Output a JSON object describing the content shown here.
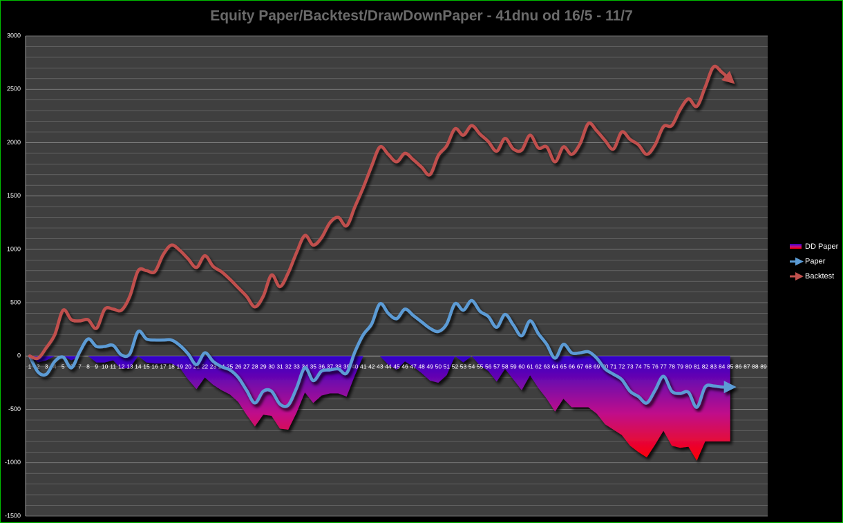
{
  "chart_data": {
    "type": "line",
    "title": "Equity Paper/Backtest/DrawDownPaper - 41dnu od 16/5 - 11/7",
    "categories": [
      1,
      2,
      3,
      4,
      5,
      6,
      7,
      8,
      9,
      10,
      11,
      12,
      13,
      14,
      15,
      16,
      17,
      18,
      19,
      20,
      21,
      22,
      23,
      24,
      25,
      26,
      27,
      28,
      29,
      30,
      31,
      32,
      33,
      34,
      35,
      36,
      37,
      38,
      39,
      40,
      41,
      42,
      43,
      44,
      45,
      46,
      47,
      48,
      49,
      50,
      51,
      52,
      53,
      54,
      55,
      56,
      57,
      58,
      59,
      60,
      61,
      62,
      63,
      64,
      65,
      66,
      67,
      68,
      69,
      70,
      71,
      72,
      73,
      74,
      75,
      76,
      77,
      78,
      79,
      80,
      81,
      82,
      83,
      84,
      85,
      86,
      87,
      88,
      89
    ],
    "series": [
      {
        "name": "DD Paper",
        "kind": "area",
        "color": "#ff0000",
        "color_top": "#3000c8",
        "values": [
          0,
          -60,
          -40,
          0,
          0,
          -40,
          0,
          0,
          -60,
          -60,
          -40,
          -120,
          -110,
          0,
          -60,
          -70,
          -70,
          -70,
          -110,
          -220,
          -310,
          -200,
          -270,
          -320,
          -360,
          -430,
          -550,
          -660,
          -550,
          -560,
          -680,
          -690,
          -530,
          -340,
          -440,
          -370,
          -350,
          -350,
          -380,
          -180,
          0,
          0,
          0,
          -80,
          -130,
          -50,
          -100,
          -160,
          -230,
          -250,
          -180,
          0,
          -60,
          0,
          -90,
          -140,
          -240,
          -120,
          -220,
          -320,
          -180,
          -300,
          -400,
          -520,
          -400,
          -480,
          -480,
          -480,
          -540,
          -640,
          -690,
          -740,
          -840,
          -900,
          -950,
          -830,
          -700,
          -840,
          -860,
          -850,
          -980,
          -800,
          -800,
          -800,
          -800,
          null,
          null,
          null,
          null
        ]
      },
      {
        "name": "Paper",
        "kind": "line",
        "color": "#5b9bd5",
        "values": [
          0,
          -150,
          -170,
          -50,
          -10,
          -110,
          40,
          160,
          90,
          90,
          100,
          10,
          20,
          230,
          160,
          150,
          150,
          150,
          100,
          20,
          -80,
          30,
          -50,
          -100,
          -130,
          -200,
          -320,
          -440,
          -330,
          -330,
          -450,
          -460,
          -300,
          -110,
          -230,
          -140,
          -130,
          -120,
          -160,
          40,
          200,
          300,
          490,
          400,
          350,
          440,
          380,
          320,
          260,
          230,
          300,
          490,
          430,
          520,
          420,
          370,
          270,
          390,
          290,
          190,
          330,
          210,
          110,
          -20,
          110,
          30,
          30,
          40,
          -20,
          -120,
          -170,
          -220,
          -330,
          -380,
          -440,
          -320,
          -190,
          -330,
          -350,
          -340,
          -480,
          -290,
          -280,
          -290,
          -290,
          null,
          null,
          null,
          null
        ]
      },
      {
        "name": "Backtest",
        "kind": "line",
        "color": "#c0504d",
        "values": [
          0,
          -20,
          80,
          200,
          430,
          340,
          330,
          340,
          260,
          440,
          440,
          430,
          560,
          800,
          800,
          790,
          950,
          1040,
          990,
          910,
          830,
          940,
          840,
          790,
          720,
          640,
          560,
          460,
          560,
          760,
          650,
          780,
          970,
          1130,
          1040,
          1110,
          1250,
          1300,
          1220,
          1400,
          1580,
          1780,
          1960,
          1890,
          1820,
          1900,
          1840,
          1770,
          1700,
          1880,
          1970,
          2130,
          2070,
          2160,
          2080,
          2010,
          1920,
          2040,
          1940,
          1930,
          2070,
          1950,
          1960,
          1820,
          1960,
          1890,
          1990,
          2180,
          2110,
          2020,
          1940,
          2100,
          2030,
          1980,
          1890,
          1980,
          2150,
          2160,
          2310,
          2410,
          2340,
          2520,
          2710,
          2660,
          2590,
          null,
          null,
          null,
          null
        ]
      }
    ],
    "ylim": [
      -1500,
      3000
    ],
    "yticks": [
      -1500,
      -1000,
      -500,
      0,
      500,
      1000,
      1500,
      2000,
      2500,
      3000
    ],
    "minor_yticks": [
      -1400,
      -1300,
      -1200,
      -1100,
      -900,
      -800,
      -700,
      -600,
      -400,
      -300,
      -200,
      -100,
      100,
      200,
      300,
      400,
      600,
      700,
      800,
      900,
      1100,
      1200,
      1300,
      1400,
      1600,
      1700,
      1800,
      1900,
      2100,
      2200,
      2300,
      2400,
      2600,
      2700,
      2800,
      2900
    ],
    "grid": true,
    "smooth": true,
    "legend": "right"
  }
}
